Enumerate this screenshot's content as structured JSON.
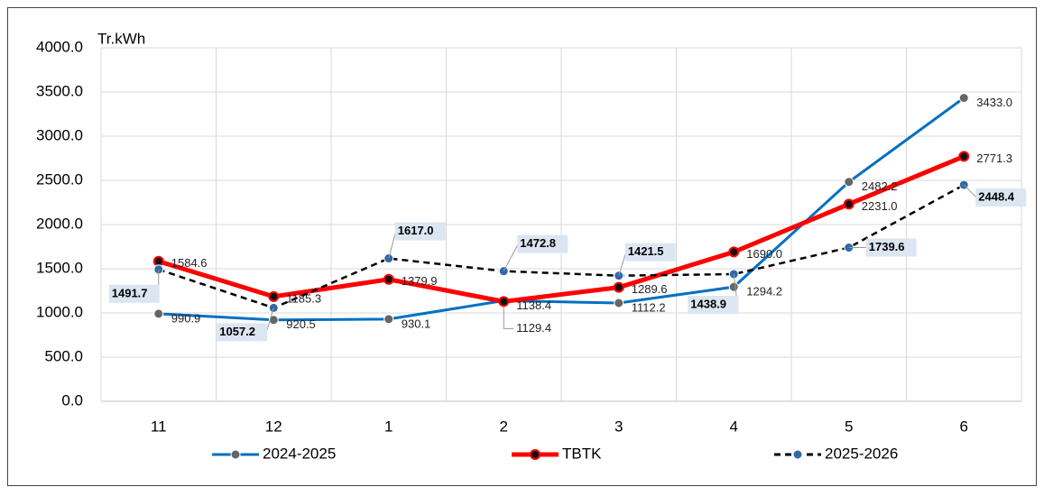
{
  "chart_data": {
    "type": "line",
    "y_axis_label": "Tr.kWh",
    "categories": [
      "11",
      "12",
      "1",
      "2",
      "3",
      "4",
      "5",
      "6"
    ],
    "ylim": [
      0,
      4000
    ],
    "yticks": [
      {
        "value": 0,
        "label": "0.0"
      },
      {
        "value": 500,
        "label": "500.0"
      },
      {
        "value": 1000,
        "label": "1000.0"
      },
      {
        "value": 1500,
        "label": "1500.0"
      },
      {
        "value": 2000,
        "label": "2000.0"
      },
      {
        "value": 2500,
        "label": "2500.0"
      },
      {
        "value": 3000,
        "label": "3000.0"
      },
      {
        "value": 3500,
        "label": "3500.0"
      },
      {
        "value": 4000,
        "label": "4000.0"
      }
    ],
    "grid": true,
    "legend": "bottom",
    "series": [
      {
        "name": "2024-2025",
        "color": "#0070c0",
        "marker_color": "#666666",
        "dashed": false,
        "values": [
          990.9,
          920.5,
          930.1,
          1138.4,
          1112.2,
          1294.2,
          2482.2,
          3433
        ],
        "value_labels": [
          "990.9",
          "920.5",
          "930.1",
          "1138.4",
          "1112.2",
          "1294.2",
          "2482.2",
          "3433.0"
        ]
      },
      {
        "name": "TBTK",
        "color": "#ff0000",
        "marker_color": "#111111",
        "dashed": false,
        "values": [
          1584.6,
          1185.3,
          1379.9,
          1129.4,
          1289.6,
          1690,
          2231,
          2771.3
        ],
        "value_labels": [
          "1584.6",
          "1185.3",
          "1379.9",
          "1129.4",
          "1289.6",
          "1690.0",
          "2231.0",
          "2771.3"
        ]
      },
      {
        "name": "2025-2026",
        "color": "#000000",
        "marker_color": "#2e6aa6",
        "dashed": true,
        "values": [
          1491.7,
          1057.2,
          1617,
          1472.8,
          1421.5,
          1438.9,
          1739.6,
          2448.4
        ],
        "value_labels": [
          "1491.7",
          "1057.2",
          "1617.0",
          "1472.8",
          "1421.5",
          "1438.9",
          "1739.6",
          "2448.4"
        ]
      }
    ]
  }
}
